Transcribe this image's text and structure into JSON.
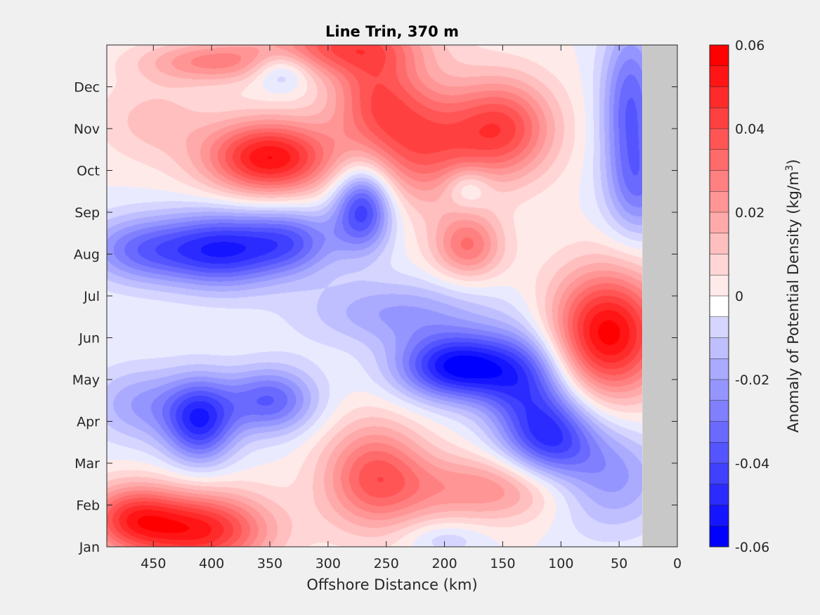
{
  "chart_data": {
    "type": "heatmap",
    "title": "Line Trin, 370 m",
    "xlabel": "Offshore Distance (km)",
    "x_reversed": true,
    "xlim": [
      0,
      490
    ],
    "x_ticks": [
      450,
      400,
      350,
      300,
      250,
      200,
      150,
      100,
      50,
      0
    ],
    "y_ticks": [
      "Jan",
      "Feb",
      "Mar",
      "Apr",
      "May",
      "Jun",
      "Jul",
      "Aug",
      "Sep",
      "Oct",
      "Nov",
      "Dec"
    ],
    "ylim_months": [
      1,
      13
    ],
    "no_data_x_range": [
      0,
      30
    ],
    "grid": false,
    "colorbar": {
      "label": "Anomaly of Potential Density (kg/m",
      "label_superscript": "3",
      "label_close": ")",
      "range": [
        -0.06,
        0.06
      ],
      "step": 0.005,
      "tick_values": [
        0.06,
        0.04,
        0.02,
        0,
        -0.02,
        -0.04,
        -0.06
      ],
      "tick_labels": [
        "0.06",
        "0.04",
        "0.02",
        "0",
        "-0.02",
        "-0.04",
        "-0.06"
      ],
      "positive_color": "#ff0000",
      "negative_color": "#0000ff",
      "zero_color": "#ffffff"
    },
    "features": [
      {
        "x": 350,
        "month": 10.3,
        "value": 0.055,
        "sx": 55,
        "sy": 0.9
      },
      {
        "x": 410,
        "month": 1.4,
        "value": 0.05,
        "sx": 60,
        "sy": 0.9
      },
      {
        "x": 470,
        "month": 1.7,
        "value": 0.035,
        "sx": 40,
        "sy": 0.8
      },
      {
        "x": 290,
        "month": 13.0,
        "value": 0.035,
        "sx": 70,
        "sy": 0.7
      },
      {
        "x": 260,
        "month": 11.8,
        "value": 0.03,
        "sx": 40,
        "sy": 1.2
      },
      {
        "x": 150,
        "month": 11.0,
        "value": 0.04,
        "sx": 45,
        "sy": 1.2
      },
      {
        "x": 220,
        "month": 10.6,
        "value": 0.035,
        "sx": 50,
        "sy": 1.4
      },
      {
        "x": 180,
        "month": 8.2,
        "value": 0.03,
        "sx": 30,
        "sy": 0.8
      },
      {
        "x": 60,
        "month": 6.1,
        "value": 0.058,
        "sx": 50,
        "sy": 1.5
      },
      {
        "x": 260,
        "month": 2.7,
        "value": 0.035,
        "sx": 45,
        "sy": 1.3
      },
      {
        "x": 160,
        "month": 2.4,
        "value": 0.025,
        "sx": 80,
        "sy": 0.8
      },
      {
        "x": 400,
        "month": 12.6,
        "value": 0.025,
        "sx": 60,
        "sy": 0.5
      },
      {
        "x": 450,
        "month": 11.2,
        "value": 0.012,
        "sx": 50,
        "sy": 1.0
      },
      {
        "x": 390,
        "month": 8.1,
        "value": -0.045,
        "sx": 50,
        "sy": 0.9
      },
      {
        "x": 460,
        "month": 8.1,
        "value": -0.03,
        "sx": 50,
        "sy": 0.8
      },
      {
        "x": 270,
        "month": 9.1,
        "value": -0.045,
        "sx": 25,
        "sy": 1.0
      },
      {
        "x": 330,
        "month": 8.3,
        "value": -0.03,
        "sx": 40,
        "sy": 0.8
      },
      {
        "x": 190,
        "month": 5.3,
        "value": -0.055,
        "sx": 50,
        "sy": 0.8
      },
      {
        "x": 130,
        "month": 5.0,
        "value": -0.035,
        "sx": 40,
        "sy": 1.2
      },
      {
        "x": 110,
        "month": 3.6,
        "value": -0.04,
        "sx": 40,
        "sy": 1.0
      },
      {
        "x": 410,
        "month": 4.0,
        "value": -0.045,
        "sx": 30,
        "sy": 1.0
      },
      {
        "x": 350,
        "month": 4.5,
        "value": -0.035,
        "sx": 40,
        "sy": 0.8
      },
      {
        "x": 460,
        "month": 4.4,
        "value": -0.02,
        "sx": 45,
        "sy": 0.9
      },
      {
        "x": 40,
        "month": 11.5,
        "value": -0.035,
        "sx": 25,
        "sy": 2.0
      },
      {
        "x": 340,
        "month": 12.4,
        "value": -0.02,
        "sx": 25,
        "sy": 0.5
      },
      {
        "x": 180,
        "month": 9.6,
        "value": -0.015,
        "sx": 20,
        "sy": 0.5
      },
      {
        "x": 200,
        "month": 1.2,
        "value": -0.01,
        "sx": 35,
        "sy": 0.4
      },
      {
        "x": 60,
        "month": 2.6,
        "value": -0.025,
        "sx": 50,
        "sy": 1.2
      },
      {
        "x": 240,
        "month": 6.6,
        "value": -0.02,
        "sx": 80,
        "sy": 0.8
      },
      {
        "x": 30,
        "month": 9.5,
        "value": -0.02,
        "sx": 30,
        "sy": 1.2
      }
    ]
  }
}
